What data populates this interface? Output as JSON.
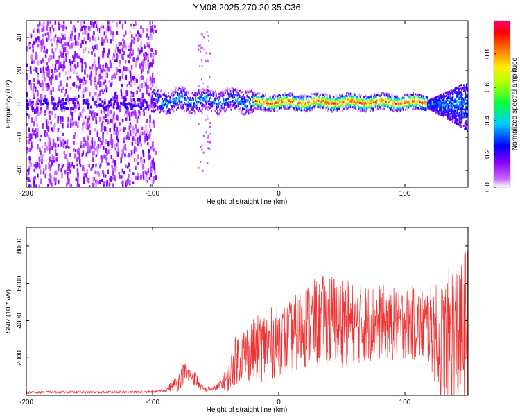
{
  "figure_title": "YM08.2025.270.20.35.C36",
  "chart_data": [
    {
      "type": "heatmap",
      "title": "YM08.2025.270.20.35.C36",
      "xlabel": "Height of straight line (km)",
      "ylabel": "Frequency (Hz)",
      "xlim": [
        -200,
        150
      ],
      "ylim": [
        -50,
        50
      ],
      "xticks": [
        -200,
        -100,
        0,
        100
      ],
      "xtick_labels": [
        "-200",
        "-100",
        "0",
        "100"
      ],
      "yticks": [
        -40,
        -20,
        0,
        20,
        40
      ],
      "ytick_labels": [
        "-40",
        "-20",
        "0",
        "20",
        "40"
      ],
      "colorbar": {
        "label": "Normalized spectral amplitude",
        "range": [
          0,
          1
        ],
        "ticks": [
          0.0,
          0.2,
          0.4,
          0.6,
          0.8
        ],
        "tick_labels": [
          "0.0",
          "0.2",
          "0.4",
          "0.6",
          "0.8"
        ],
        "colormap": [
          "#ffffff",
          "#8800ff",
          "#0000ff",
          "#00ffff",
          "#00ff00",
          "#ffff00",
          "#ff8800",
          "#ff0000",
          "#ff0066"
        ]
      },
      "regions": [
        {
          "name": "broadband noise",
          "x_range": [
            -200,
            -97
          ],
          "freq_range": [
            -50,
            50
          ],
          "amplitude": 0.1
        },
        {
          "name": "narrow band",
          "x_range": [
            -100,
            -20
          ],
          "freq_center": 2,
          "amplitude": 0.35
        },
        {
          "name": "strong narrow band",
          "x_range": [
            -20,
            118
          ],
          "freq_center": 1,
          "amplitude": 0.9
        },
        {
          "name": "widening band",
          "x_range": [
            118,
            150
          ],
          "freq_range": [
            -25,
            20
          ],
          "amplitude": 0.2
        }
      ]
    },
    {
      "type": "line",
      "xlabel": "Height of straight line (km)",
      "ylabel": "SNR (10 * v/v)",
      "xlim": [
        -200,
        150
      ],
      "ylim": [
        0,
        9000
      ],
      "xticks": [
        -200,
        -100,
        0,
        100
      ],
      "xtick_labels": [
        "-200",
        "-100",
        "0",
        "100"
      ],
      "yticks": [
        2000,
        4000,
        6000,
        8000
      ],
      "ytick_labels": [
        "2000",
        "4000",
        "6000",
        "8000"
      ],
      "series_color": "#ee3333",
      "x": [
        -200,
        -180,
        -160,
        -140,
        -120,
        -100,
        -90,
        -80,
        -75,
        -70,
        -65,
        -60,
        -50,
        -40,
        -35,
        -30,
        -20,
        -10,
        0,
        10,
        20,
        30,
        40,
        50,
        60,
        70,
        80,
        90,
        100,
        110,
        120,
        125,
        130,
        140,
        150
      ],
      "y": [
        150,
        170,
        160,
        160,
        170,
        180,
        250,
        700,
        1200,
        1100,
        800,
        300,
        350,
        900,
        1800,
        2200,
        2400,
        2700,
        2900,
        3100,
        3700,
        3900,
        4000,
        4100,
        3800,
        3900,
        3900,
        3800,
        3900,
        3800,
        3700,
        3200,
        2800,
        3400,
        3800
      ],
      "noise_amplitude": [
        60,
        60,
        60,
        60,
        60,
        60,
        80,
        500,
        600,
        500,
        400,
        150,
        150,
        700,
        1300,
        1500,
        1700,
        2000,
        1900,
        2000,
        2300,
        2400,
        2600,
        2600,
        2200,
        2100,
        2100,
        2000,
        2000,
        2000,
        2300,
        2800,
        3300,
        4200,
        4500
      ]
    }
  ]
}
